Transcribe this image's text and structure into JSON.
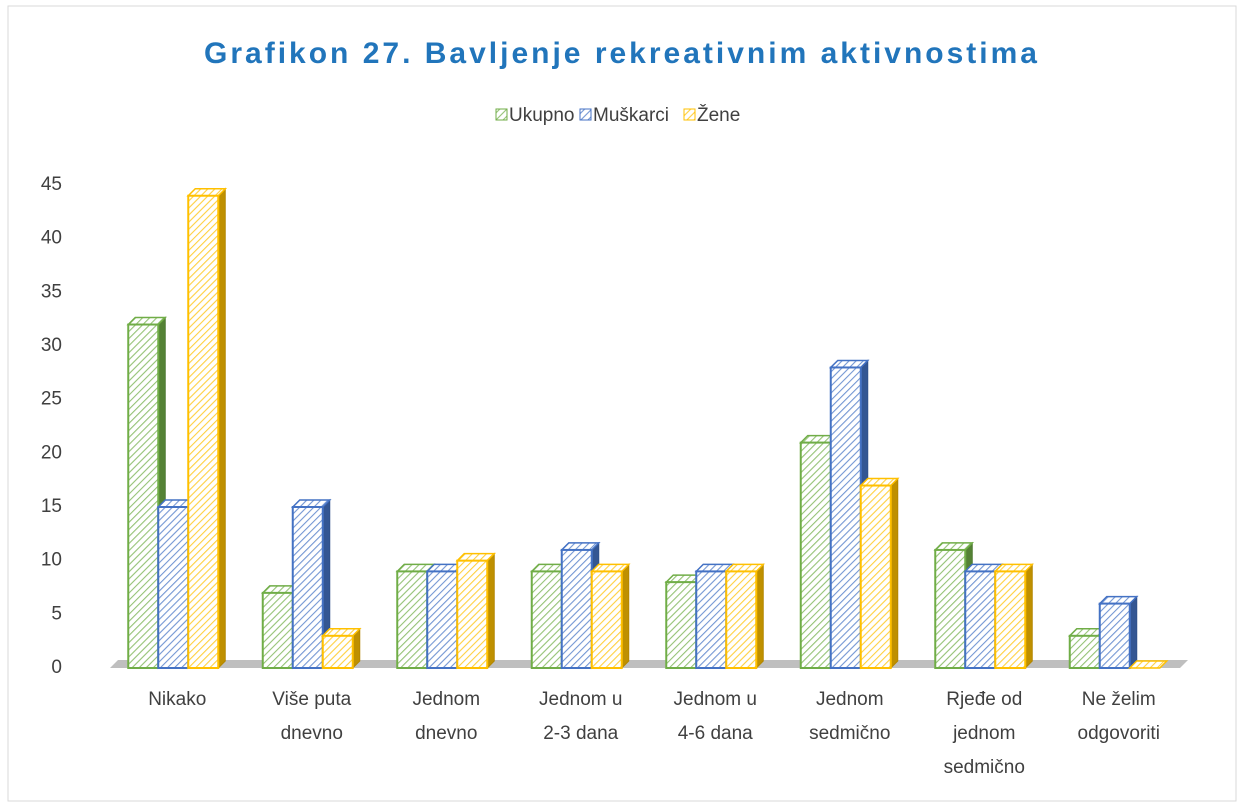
{
  "chart_data": {
    "type": "bar3d",
    "title": "Grafikon 27. Bavljenje rekreativnim aktivnostima",
    "categories": [
      "Nikako",
      "Više puta dnevno",
      "Jednom dnevno",
      "Jednom u 2-3 dana",
      "Jednom u 4-6 dana",
      "Jednom sedmično",
      "Rjeđe od jednom sedmično",
      "Ne želim odgovoriti"
    ],
    "series": [
      {
        "name": "Ukupno",
        "color": "#70ad47",
        "values": [
          32,
          7,
          9,
          9,
          8,
          21,
          11,
          3
        ]
      },
      {
        "name": "Muškarci",
        "color": "#4472c4",
        "values": [
          15,
          15,
          9,
          11,
          9,
          28,
          9,
          6
        ]
      },
      {
        "name": "Žene",
        "color": "#ffc000",
        "values": [
          44,
          3,
          10,
          9,
          9,
          17,
          9,
          0
        ]
      }
    ],
    "ylim": [
      0,
      45
    ],
    "yticks": [
      0,
      5,
      10,
      15,
      20,
      25,
      30,
      35,
      40,
      45
    ],
    "grid": false,
    "legend": "top"
  }
}
